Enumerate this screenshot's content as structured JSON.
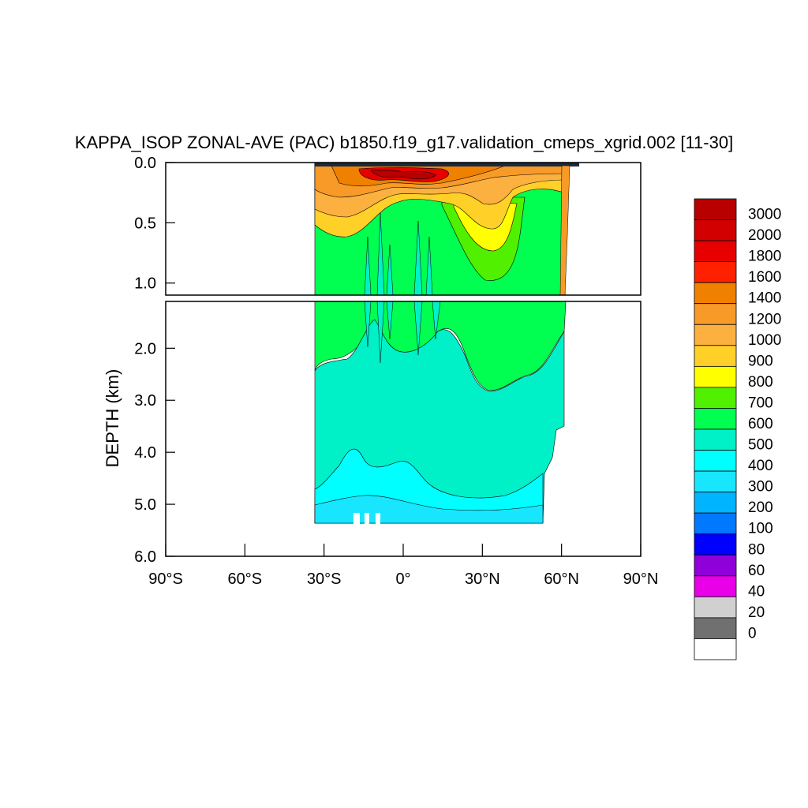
{
  "chart_data": {
    "type": "heatmap",
    "title": "KAPPA_ISOP ZONAL-AVE (PAC) b1850.f19_g17.validation_cmeps_xgrid.002 [11-30]",
    "ylabel": "DEPTH (km)",
    "xlabel": "",
    "x_ticks": [
      {
        "value": -90,
        "label": "90°S"
      },
      {
        "value": -60,
        "label": "60°S"
      },
      {
        "value": -30,
        "label": "30°S"
      },
      {
        "value": 0,
        "label": "0°"
      },
      {
        "value": 30,
        "label": "30°N"
      },
      {
        "value": 60,
        "label": "60°N"
      },
      {
        "value": 90,
        "label": "90°N"
      }
    ],
    "xlim": [
      -90,
      90
    ],
    "upper_panel": {
      "ylim": [
        0.0,
        1.1
      ],
      "y_ticks": [
        {
          "value": 0.0,
          "label": "0.0"
        },
        {
          "value": 0.5,
          "label": "0.5"
        },
        {
          "value": 1.0,
          "label": "1.0"
        }
      ]
    },
    "lower_panel": {
      "ylim": [
        1.1,
        6.0
      ],
      "y_ticks": [
        {
          "value": 2.0,
          "label": "2.0"
        },
        {
          "value": 3.0,
          "label": "3.0"
        },
        {
          "value": 4.0,
          "label": "4.0"
        },
        {
          "value": 5.0,
          "label": "5.0"
        },
        {
          "value": 6.0,
          "label": "6.0"
        }
      ]
    },
    "colorbar": {
      "levels": [
        "3000",
        "2000",
        "1800",
        "1600",
        "1400",
        "1200",
        "1000",
        "900",
        "800",
        "700",
        "600",
        "500",
        "400",
        "300",
        "200",
        "100",
        "80",
        "60",
        "40",
        "20",
        "0"
      ],
      "colors": [
        "#b80000",
        "#d20000",
        "#e60000",
        "#ff2000",
        "#f08000",
        "#f89a28",
        "#fcb040",
        "#ffd028",
        "#ffff00",
        "#50f000",
        "#00ff50",
        "#00f0c8",
        "#00ffff",
        "#18e6ff",
        "#00b4ff",
        "#0078ff",
        "#0000ff",
        "#9000d8",
        "#e800e8",
        "#d0d0d0",
        "#707070",
        "#ffffff"
      ]
    },
    "field": {
      "data_extent": {
        "lat": [
          -34,
          62
        ],
        "max_depth": 5.35
      },
      "shallow_water_bands": [
        {
          "level": "3000",
          "region": "near-surface maximum around 15°S–10°N, depth 0.1–0.2 km"
        },
        {
          "level": "1400",
          "region": "upper ocean 0.1–0.5 km"
        },
        {
          "level": "800",
          "region": "subpolar North Pacific 30°N–45°N, 0.5–0.8 km"
        },
        {
          "level": "700",
          "region": "intermediate waters 0.4–2.5 km"
        },
        {
          "level": "600",
          "region": "deep ocean 2.5–5.3 km"
        },
        {
          "level": "400",
          "region": "near-bottom layer 4.5–5.35 km"
        }
      ]
    }
  }
}
